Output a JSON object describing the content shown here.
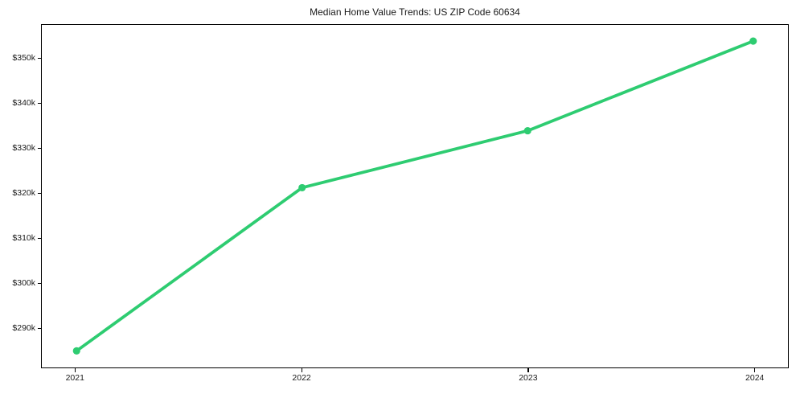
{
  "figure": {
    "background": "#ffffff",
    "text_color": "#1a1a1a",
    "axis_color": "#000000"
  },
  "chart_data": {
    "type": "line",
    "title": "Median Home Value Trends: US ZIP Code 60634",
    "xlabel": "",
    "ylabel": "",
    "x": [
      2021,
      2022,
      2023,
      2024
    ],
    "x_tick_labels": [
      "2021",
      "2022",
      "2023",
      "2024"
    ],
    "series": [
      {
        "name": "median-home-value",
        "values": [
          284800,
          321200,
          333900,
          353900
        ],
        "color": "#2ecc71",
        "marker": "circle",
        "line_width": 3.8,
        "marker_radius": 4.6
      }
    ],
    "y_tick_values": [
      290000,
      300000,
      310000,
      320000,
      330000,
      340000,
      350000
    ],
    "y_tick_labels": [
      "$290k",
      "$300k",
      "$310k",
      "$320k",
      "$330k",
      "$340k",
      "$350k"
    ],
    "xlim": [
      2020.85,
      2024.15
    ],
    "ylim": [
      281100,
      357500
    ],
    "grid": false,
    "legend_position": "none"
  }
}
